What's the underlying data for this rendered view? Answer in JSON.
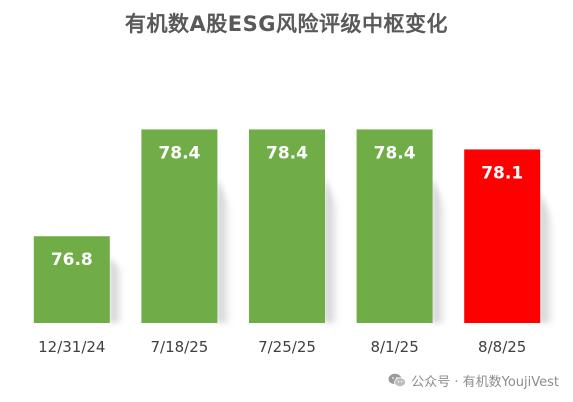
{
  "chart_data": {
    "type": "bar",
    "title": "有机数A股ESG风险评级中枢变化",
    "categories": [
      "12/31/24",
      "7/18/25",
      "7/25/25",
      "8/1/25",
      "8/8/25"
    ],
    "values": [
      76.8,
      78.4,
      78.4,
      78.4,
      78.1
    ],
    "value_labels": [
      "76.8",
      "78.4",
      "78.4",
      "78.4",
      "78.1"
    ],
    "ylim": [
      75.5,
      79.5
    ],
    "grid": false,
    "legend": "none",
    "colors": {
      "default_bar": "#70AD47",
      "highlight_bar": "#FF0000",
      "label_text": "#FFFFFF",
      "tick_text": "#404040"
    },
    "highlight_index": 4
  },
  "watermark": {
    "icon": "wechat-icon",
    "text": "公众号 · 有机数YoujiVest"
  }
}
